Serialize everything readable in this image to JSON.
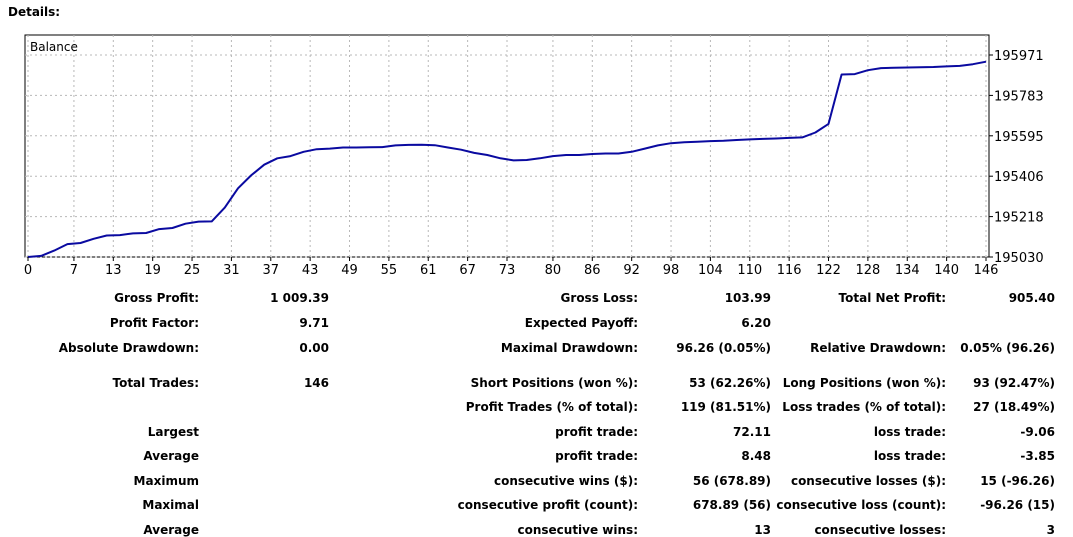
{
  "header": {
    "title": "Details:"
  },
  "chart_data": {
    "type": "line",
    "title": "Balance",
    "x_ticks": [
      "0",
      "7",
      "13",
      "19",
      "25",
      "31",
      "37",
      "43",
      "49",
      "55",
      "61",
      "67",
      "73",
      "80",
      "86",
      "92",
      "98",
      "104",
      "110",
      "116",
      "122",
      "128",
      "134",
      "140",
      "146"
    ],
    "y_ticks": [
      "195971",
      "195783",
      "195595",
      "195406",
      "195218",
      "195030"
    ],
    "xlim": [
      0,
      146
    ],
    "ylim": [
      195030,
      195971
    ],
    "grid": true,
    "line_color": "#0a0aa0",
    "x": [
      0,
      2,
      4,
      6,
      8,
      10,
      12,
      14,
      16,
      18,
      20,
      22,
      24,
      26,
      28,
      30,
      32,
      34,
      36,
      38,
      40,
      42,
      44,
      46,
      48,
      50,
      52,
      54,
      56,
      58,
      60,
      62,
      64,
      66,
      68,
      70,
      72,
      74,
      76,
      78,
      80,
      82,
      84,
      86,
      88,
      90,
      92,
      94,
      96,
      98,
      100,
      102,
      104,
      106,
      108,
      110,
      112,
      114,
      116,
      118,
      120,
      122,
      124,
      126,
      128,
      130,
      132,
      134,
      136,
      138,
      140,
      142,
      144,
      146
    ],
    "y": [
      195030,
      195035,
      195060,
      195090,
      195095,
      195115,
      195130,
      195132,
      195140,
      195142,
      195160,
      195165,
      195185,
      195195,
      195196,
      195260,
      195350,
      195410,
      195460,
      195490,
      195500,
      195520,
      195532,
      195535,
      195540,
      195540,
      195541,
      195542,
      195550,
      195552,
      195553,
      195551,
      195540,
      195530,
      195515,
      195505,
      195490,
      195480,
      195482,
      195490,
      195500,
      195505,
      195505,
      195510,
      195512,
      195512,
      195520,
      195535,
      195550,
      195560,
      195565,
      195567,
      195570,
      195572,
      195575,
      195578,
      195580,
      195582,
      195585,
      195587,
      195610,
      195650,
      195880,
      195882,
      195900,
      195910,
      195912,
      195913,
      195914,
      195915,
      195918,
      195920,
      195928,
      195940
    ]
  },
  "stats": {
    "gross_profit_label": "Gross Profit:",
    "gross_profit": "1 009.39",
    "gross_loss_label": "Gross Loss:",
    "gross_loss": "103.99",
    "total_net_profit_label": "Total Net Profit:",
    "total_net_profit": "905.40",
    "profit_factor_label": "Profit Factor:",
    "profit_factor": "9.71",
    "expected_payoff_label": "Expected Payoff:",
    "expected_payoff": "6.20",
    "absolute_drawdown_label": "Absolute Drawdown:",
    "absolute_drawdown": "0.00",
    "maximal_drawdown_label": "Maximal Drawdown:",
    "maximal_drawdown": "96.26 (0.05%)",
    "relative_drawdown_label": "Relative Drawdown:",
    "relative_drawdown": "0.05% (96.26)",
    "total_trades_label": "Total Trades:",
    "total_trades": "146",
    "short_positions_label": "Short Positions (won %):",
    "short_positions": "53 (62.26%)",
    "long_positions_label": "Long Positions (won %):",
    "long_positions": "93 (92.47%)",
    "profit_trades_label": "Profit Trades (% of total):",
    "profit_trades": "119 (81.51%)",
    "loss_trades_label": "Loss trades (% of total):",
    "loss_trades": "27 (18.49%)",
    "largest_label": "Largest",
    "largest_profit_label": "profit trade:",
    "largest_profit": "72.11",
    "largest_loss_label": "loss trade:",
    "largest_loss": "-9.06",
    "average_label": "Average",
    "average_profit_label": "profit trade:",
    "average_profit": "8.48",
    "average_loss_label": "loss trade:",
    "average_loss": "-3.85",
    "maximum_label": "Maximum",
    "max_consec_wins_label": "consecutive wins ($):",
    "max_consec_wins": "56 (678.89)",
    "max_consec_losses_label": "consecutive losses ($):",
    "max_consec_losses": "15 (-96.26)",
    "maximal_label": "Maximal",
    "maximal_consec_profit_label": "consecutive profit (count):",
    "maximal_consec_profit": "678.89 (56)",
    "maximal_consec_loss_label": "consecutive loss (count):",
    "maximal_consec_loss": "-96.26 (15)",
    "average2_label": "Average",
    "avg_consec_wins_label": "consecutive wins:",
    "avg_consec_wins": "13",
    "avg_consec_losses_label": "consecutive losses:",
    "avg_consec_losses": "3"
  }
}
